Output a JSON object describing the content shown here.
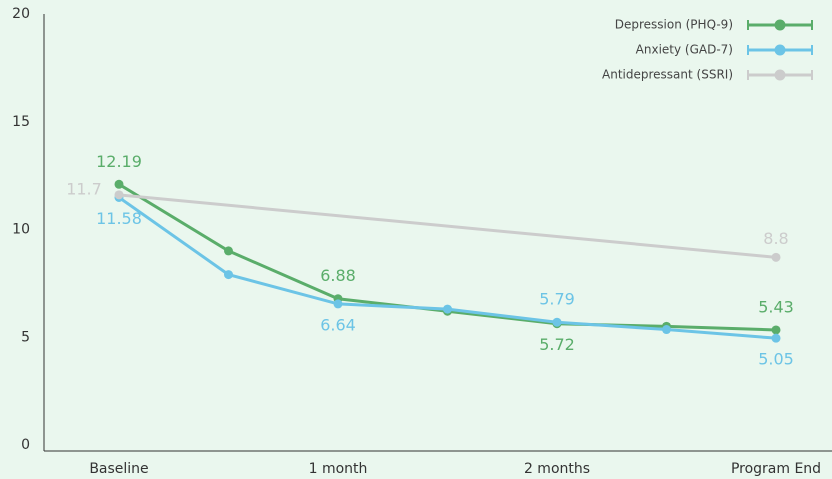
{
  "chart_data": {
    "type": "line",
    "categories": [
      "Baseline",
      null,
      "1 month",
      null,
      "2 months",
      null,
      "Program End"
    ],
    "series": [
      {
        "name": "Depression (PHQ-9)",
        "color": "#5aad6a",
        "values": [
          12.19,
          9.1,
          6.88,
          6.3,
          5.72,
          5.6,
          5.43
        ]
      },
      {
        "name": "Anxiety (GAD-7)",
        "color": "#6cc4e6",
        "values": [
          11.58,
          8.0,
          6.64,
          6.4,
          5.79,
          5.45,
          5.05
        ]
      },
      {
        "name": "Antidepressant (SSRI)",
        "color": "#cccccc",
        "x": [
          "Baseline",
          "Program End"
        ],
        "values": [
          11.7,
          8.8
        ]
      }
    ],
    "ylim": [
      0,
      20
    ],
    "yticks": [
      0,
      5,
      10,
      15,
      20
    ],
    "grid": false,
    "legend": "top-right"
  }
}
